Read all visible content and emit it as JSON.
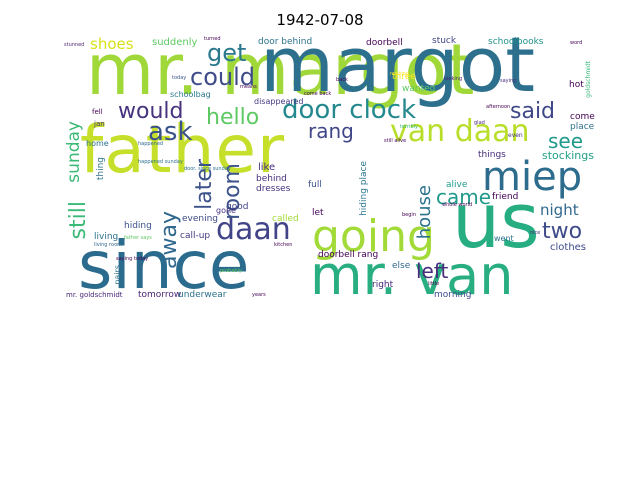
{
  "title": "1942-07-08",
  "words": {
    "father": "father",
    "mr_margot": "mr. margot",
    "since": "since",
    "us": "us",
    "mr_van": "mr. van",
    "going": "going",
    "van_daan": "van daan",
    "miep": "miep",
    "door_clock": "door clock",
    "daan": "daan",
    "hello": "hello",
    "could": "could",
    "get": "get",
    "ask": "ask",
    "would": "would",
    "said": "said",
    "rang": "rang",
    "room": "room",
    "house": "house",
    "came": "came",
    "left": "left",
    "two": "two",
    "see": "see",
    "later": "later",
    "away": "away",
    "still": "still",
    "sunday": "sunday",
    "shoes": "shoes",
    "night": "night",
    "suddenly": "suddenly",
    "door_behind": "door behind",
    "doorbell": "doorbell",
    "stuck": "stuck",
    "schoolbooks": "schoolbooks",
    "schoolbag": "schoolbag",
    "three": "three",
    "wanted": "wanted",
    "hot": "hot",
    "disappeared": "disappeared",
    "stockings": "stockings",
    "place": "place",
    "come": "come",
    "things": "things",
    "like": "like",
    "behind": "behind",
    "dresses": "dresses",
    "full": "full",
    "hiding_place": "hiding place",
    "alive": "alive",
    "friend": "friend",
    "clothes": "clothes",
    "went": "went",
    "evening": "evening",
    "living": "living",
    "hiding": "hiding",
    "call_up": "call-up",
    "called": "called",
    "good": "good",
    "let": "let",
    "doorbell_rang": "doorbell rang",
    "else": "else",
    "right": "right",
    "morning": "morning",
    "tomorrow": "tomorrow",
    "underwear": "underwear",
    "mr_goldschmidt": "mr. goldschmidt",
    "pairs": "pairs",
    "gone": "gone",
    "thing": "thing",
    "home": "home",
    "fell": "fell",
    "jan": "jan",
    "happened": "happened",
    "father_says": "father says",
    "business": "business",
    "even": "even",
    "happened_sunday": "happened sunday",
    "nothing": "nothing",
    "soon": "soon",
    "last": "last",
    "back": "back",
    "saying": "saying",
    "today": "today",
    "goldschmidt": "goldschmidt",
    "probably": "probably",
    "stunned": "stunned",
    "word": "word",
    "turned": "turned",
    "years": "years",
    "looking": "looking",
    "afternoon": "afternoon",
    "belongings": "belongings",
    "tomorrow_small": "tomorrow",
    "come_back": "come back",
    "glad": "glad",
    "means": "means",
    "gone_small": "gone",
    "still_alive": "still alive",
    "whole_world": "whole world",
    "realize": "realize",
    "upstairs": "upstairs",
    "hours": "hours",
    "knew": "knew",
    "lots": "lots",
    "saying_today": "saying today",
    "little": "little",
    "nice": "nice",
    "terribly": "terribly",
    "kitchen": "kitchen",
    "door_sunday": "door. since sunday",
    "living_room": "living room",
    "alive_small": "alive",
    "begin": "begin",
    "stuck_small": "stuck"
  }
}
